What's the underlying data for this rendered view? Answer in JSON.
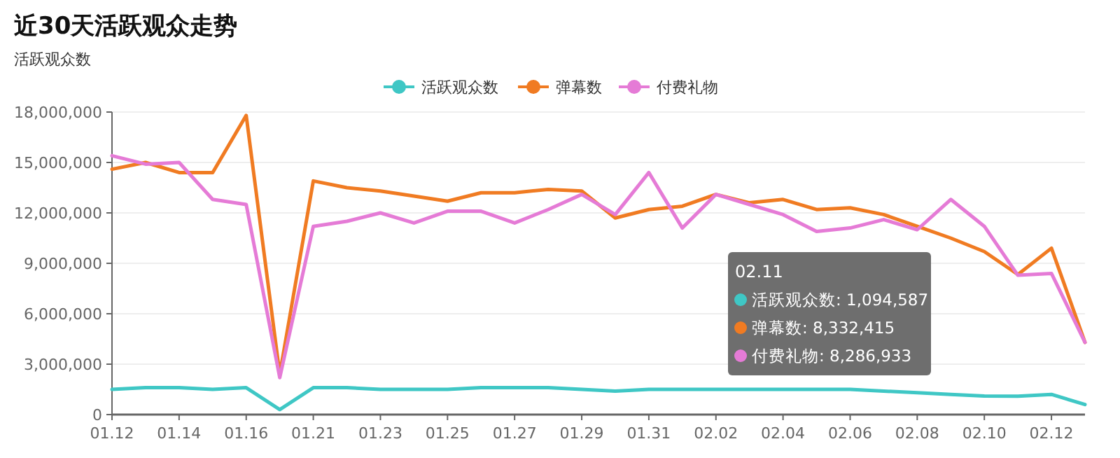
{
  "chart_data": {
    "type": "line",
    "title": "近30天活跃观众走势",
    "subtitle": "活跃观众数",
    "categories": [
      "01.12",
      null,
      "01.14",
      null,
      "01.16",
      null,
      "01.21",
      null,
      "01.23",
      null,
      "01.25",
      null,
      "01.27",
      null,
      "01.29",
      null,
      "01.31",
      null,
      "02.02",
      null,
      "02.04",
      null,
      "02.06",
      null,
      "02.08",
      null,
      "02.10",
      null,
      "02.12",
      null
    ],
    "series": [
      {
        "name": "活跃观众数",
        "color": "#3fc7c5",
        "values": [
          1500000,
          1600000,
          1600000,
          1500000,
          1600000,
          300000,
          1600000,
          1600000,
          1500000,
          1500000,
          1500000,
          1600000,
          1600000,
          1600000,
          1500000,
          1400000,
          1500000,
          1500000,
          1500000,
          1500000,
          1500000,
          1500000,
          1500000,
          1400000,
          1300000,
          1200000,
          1100000,
          1094587,
          1200000,
          600000
        ]
      },
      {
        "name": "弹幕数",
        "color": "#f07b22",
        "values": [
          14600000,
          15000000,
          14400000,
          14400000,
          17800000,
          2400000,
          13900000,
          13500000,
          13300000,
          13000000,
          12700000,
          13200000,
          13200000,
          13400000,
          13300000,
          11700000,
          12200000,
          12400000,
          13100000,
          12600000,
          12800000,
          12200000,
          12300000,
          11900000,
          11200000,
          10500000,
          9700000,
          8332415,
          9900000,
          4300000
        ]
      },
      {
        "name": "付费礼物",
        "color": "#e57bd6",
        "values": [
          15400000,
          14900000,
          15000000,
          12800000,
          12500000,
          2200000,
          11200000,
          11500000,
          12000000,
          11400000,
          12100000,
          12100000,
          11400000,
          12200000,
          13100000,
          11900000,
          14400000,
          11100000,
          13100000,
          12500000,
          11900000,
          10900000,
          11100000,
          11600000,
          11000000,
          12800000,
          11200000,
          8286933,
          8400000,
          4300000
        ]
      }
    ],
    "ylim": [
      0,
      18000000
    ],
    "yticks": [
      {
        "value": 0,
        "label": "0"
      },
      {
        "value": 3000000,
        "label": "3,000,000"
      },
      {
        "value": 6000000,
        "label": "6,000,000"
      },
      {
        "value": 9000000,
        "label": "9,000,000"
      },
      {
        "value": 12000000,
        "label": "12,000,000"
      },
      {
        "value": 15000000,
        "label": "15,000,000"
      },
      {
        "value": 18000000,
        "label": "18,000,000"
      }
    ],
    "grid": "y",
    "legend": "top",
    "marker": "none",
    "line_style": "solid",
    "annotations": [
      "02.11",
      "活跃观众数: 1,094,587",
      "弹幕数: 8,332,415",
      "付费礼物: 8,286,933"
    ]
  }
}
